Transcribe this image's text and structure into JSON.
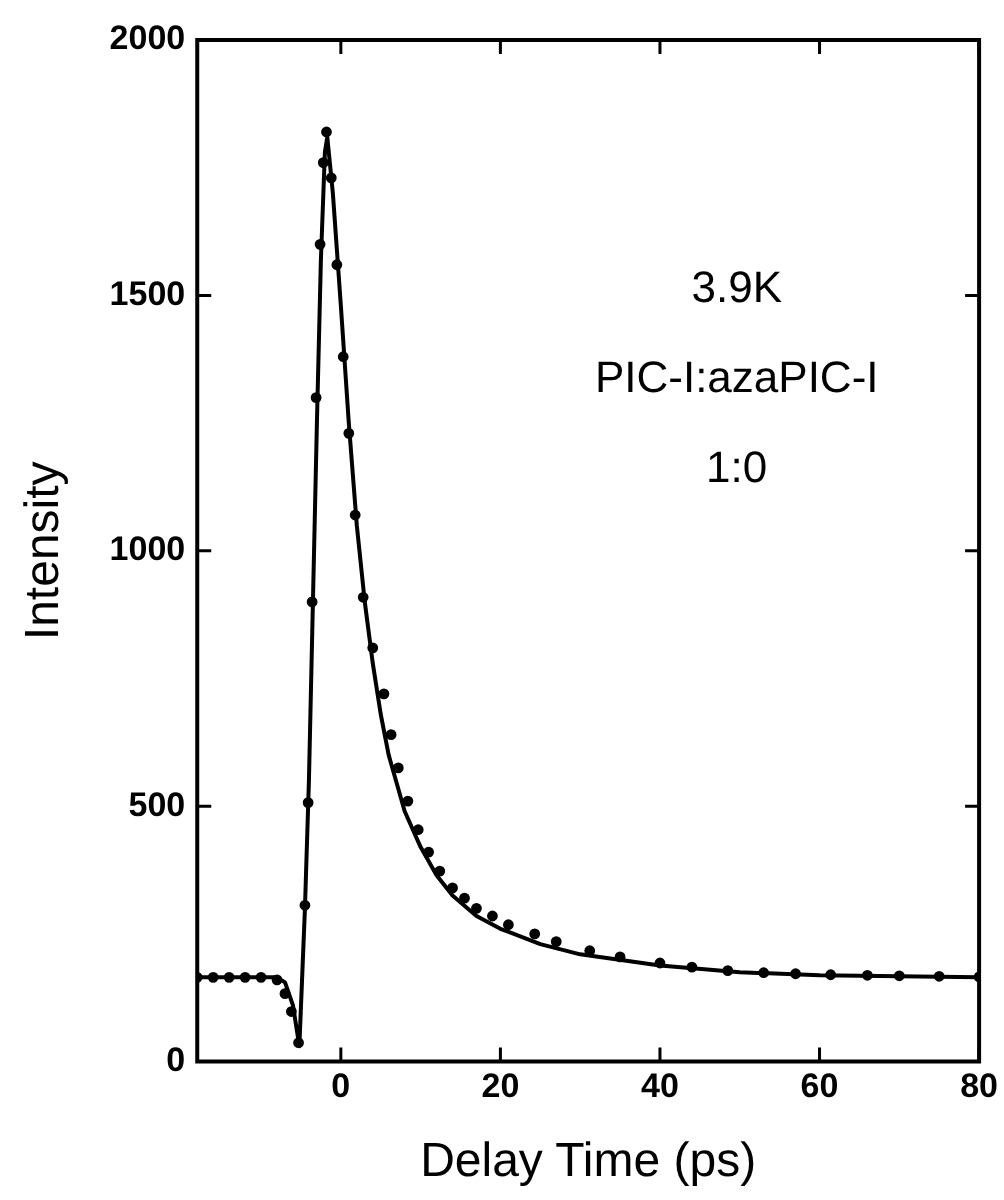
{
  "chart_data": {
    "type": "scatter",
    "xlabel": "Delay Time (ps)",
    "ylabel": "Intensity",
    "annotations": [
      "3.9K",
      "PIC-I:azaPIC-I",
      "1:0"
    ],
    "xlim": [
      -18,
      80
    ],
    "xticks": [
      0,
      20,
      40,
      60,
      80
    ],
    "ylim": [
      0,
      2000
    ],
    "yticks": [
      0,
      500,
      1000,
      1500,
      2000
    ],
    "grid": false,
    "legend": false,
    "series": [
      {
        "color": "#000000",
        "marker": "circle",
        "x": [
          -18,
          -16,
          -14,
          -12,
          -10,
          -8,
          -7,
          -6.2,
          -5.3,
          -4.5,
          -4.1,
          -3.6,
          -3.1,
          -2.6,
          -2.2,
          -1.8,
          -1.2,
          -0.5,
          0.3,
          1,
          1.8,
          2.8,
          4,
          5.4,
          6.3,
          7.2,
          8.4,
          9.7,
          11,
          12.4,
          14,
          15.5,
          17,
          19,
          21,
          24.3,
          27,
          31.2,
          35,
          40,
          44,
          48.5,
          53,
          57,
          61.4,
          66,
          70,
          75,
          80
        ],
        "values": [
          165,
          165,
          165,
          165,
          165,
          160,
          133,
          98,
          37,
          306,
          507,
          900,
          1300,
          1600,
          1760,
          1820,
          1730,
          1560,
          1380,
          1230,
          1070,
          909,
          810,
          720,
          640,
          575,
          510,
          454,
          410,
          373,
          340,
          320,
          300,
          285,
          268,
          250,
          235,
          217,
          205,
          193,
          185,
          178,
          174,
          172,
          170,
          169,
          168,
          167,
          166
        ]
      },
      {
        "type": "line",
        "color": "#000000",
        "marker": "none",
        "line_style": "solid",
        "x": [
          -18,
          -8,
          -7,
          -6,
          -5.2,
          -4.5,
          -4,
          -3.5,
          -3,
          -2.5,
          -2,
          -1.7,
          -1,
          0,
          1,
          2,
          3,
          4,
          5,
          6,
          8,
          10,
          12,
          14,
          17,
          20,
          25,
          30,
          40,
          50,
          60,
          70,
          80
        ],
        "values": [
          165,
          165,
          155,
          110,
          30,
          300,
          550,
          900,
          1250,
          1570,
          1780,
          1810,
          1700,
          1480,
          1250,
          1050,
          900,
          780,
          680,
          600,
          490,
          420,
          365,
          325,
          285,
          260,
          230,
          210,
          188,
          175,
          169,
          167,
          165
        ]
      }
    ]
  }
}
